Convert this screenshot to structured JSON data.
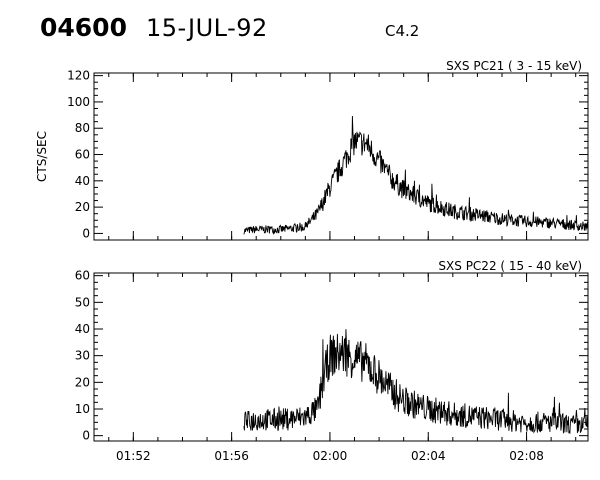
{
  "header": {
    "event_id": "04600",
    "date": "15-JUL-92",
    "flare_class": "C4.2"
  },
  "chart_data": [
    {
      "type": "line",
      "title": "SXS PC21  (  3 - 15 keV)",
      "ylabel": "CTS/SEC",
      "xlim": [
        "01:50:24",
        "02:10:30"
      ],
      "ylim": [
        -5,
        122
      ],
      "yticks": [
        0,
        20,
        40,
        60,
        80,
        100,
        120
      ],
      "xticks": [
        "01:52",
        "01:56",
        "02:00",
        "02:04",
        "02:08"
      ],
      "grid": false,
      "series": [
        {
          "x": [
            "01:56:30",
            "01:57:00",
            "01:58:00",
            "01:59:00",
            "01:59:30",
            "02:00:00",
            "02:00:30",
            "02:01:00",
            "02:01:30",
            "02:02:00",
            "02:02:30",
            "02:03:00",
            "02:04:00",
            "02:05:00",
            "02:06:00",
            "02:07:00",
            "02:08:00",
            "02:09:00",
            "02:10:00",
            "02:10:30"
          ],
          "values": [
            2,
            3,
            3,
            5,
            15,
            35,
            52,
            70,
            68,
            55,
            42,
            33,
            23,
            17,
            14,
            11,
            9,
            8,
            6,
            5
          ]
        }
      ]
    },
    {
      "type": "line",
      "title": "SXS PC22  ( 15 - 40 keV)",
      "ylabel": "",
      "xlim": [
        "01:50:24",
        "02:10:30"
      ],
      "ylim": [
        -2,
        61
      ],
      "yticks": [
        0,
        10,
        20,
        30,
        40,
        50,
        60
      ],
      "xticks": [
        "01:52",
        "01:56",
        "02:00",
        "02:04",
        "02:08"
      ],
      "grid": false,
      "series": [
        {
          "x": [
            "01:56:30",
            "01:57:00",
            "01:58:00",
            "01:59:00",
            "01:59:30",
            "01:59:45",
            "02:00:00",
            "02:00:30",
            "02:01:00",
            "02:01:30",
            "02:02:00",
            "02:02:30",
            "02:03:00",
            "02:04:00",
            "02:05:00",
            "02:06:00",
            "02:07:00",
            "02:08:00",
            "02:09:00",
            "02:10:00",
            "02:10:30"
          ],
          "values": [
            5,
            6,
            6,
            7,
            10,
            22,
            30,
            31,
            29,
            27,
            22,
            17,
            13,
            10,
            8,
            7,
            6,
            5,
            5,
            4,
            4
          ]
        }
      ]
    }
  ]
}
